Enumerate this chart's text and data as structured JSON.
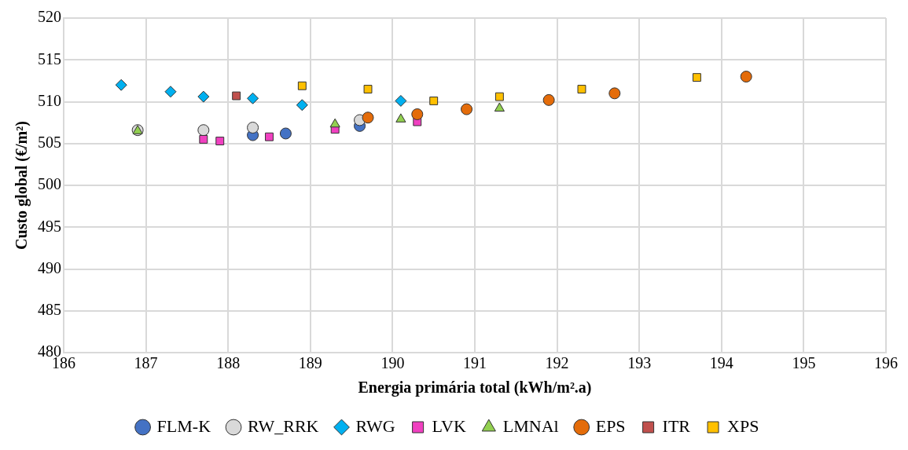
{
  "chart_data": {
    "type": "scatter",
    "xlabel": "Energia primária total (kWh/m².a)",
    "ylabel": "Custo global (€/m²)",
    "xlim": [
      186,
      196
    ],
    "xticks": [
      186,
      187,
      188,
      189,
      190,
      191,
      192,
      193,
      194,
      195,
      196
    ],
    "ylim": [
      480,
      520
    ],
    "yticks": [
      480,
      485,
      490,
      495,
      500,
      505,
      510,
      515,
      520
    ],
    "grid": true,
    "legend": "bottom",
    "series": [
      {
        "name": "FLM-K",
        "color": "#4472c4",
        "marker": "circle",
        "x": [
          188.3,
          188.7,
          189.6
        ],
        "values": [
          506.0,
          506.2,
          507.1
        ]
      },
      {
        "name": "RW_RRK",
        "color": "#d9d9d9",
        "marker": "circle",
        "x": [
          186.9,
          187.7,
          188.3,
          189.6
        ],
        "values": [
          506.6,
          506.6,
          506.9,
          507.8
        ]
      },
      {
        "name": "RWG",
        "color": "#00b0f0",
        "marker": "diamond",
        "x": [
          186.7,
          187.3,
          187.7,
          188.3,
          188.9,
          190.1
        ],
        "values": [
          512.0,
          511.2,
          510.6,
          510.4,
          509.6,
          510.1
        ]
      },
      {
        "name": "LVK",
        "color": "#f040c0",
        "marker": "square",
        "x": [
          187.7,
          187.9,
          188.5,
          189.3,
          190.3
        ],
        "values": [
          505.5,
          505.3,
          505.8,
          506.7,
          507.6
        ]
      },
      {
        "name": "LMNAl",
        "color": "#92d050",
        "marker": "triangle",
        "x": [
          186.9,
          189.3,
          190.1,
          191.3
        ],
        "values": [
          506.5,
          507.3,
          507.9,
          509.2
        ]
      },
      {
        "name": "EPS",
        "color": "#e46c0a",
        "marker": "circle",
        "x": [
          189.7,
          190.3,
          190.9,
          191.9,
          192.7,
          194.3
        ],
        "values": [
          508.1,
          508.5,
          509.1,
          510.2,
          511.0,
          513.0
        ]
      },
      {
        "name": "ITR",
        "color": "#c0504d",
        "marker": "square",
        "x": [
          188.1
        ],
        "values": [
          510.7
        ]
      },
      {
        "name": "XPS",
        "color": "#ffc000",
        "marker": "square",
        "x": [
          188.9,
          189.7,
          190.5,
          191.3,
          192.3,
          193.7
        ],
        "values": [
          511.9,
          511.5,
          510.1,
          510.6,
          511.5,
          512.9
        ]
      }
    ]
  }
}
